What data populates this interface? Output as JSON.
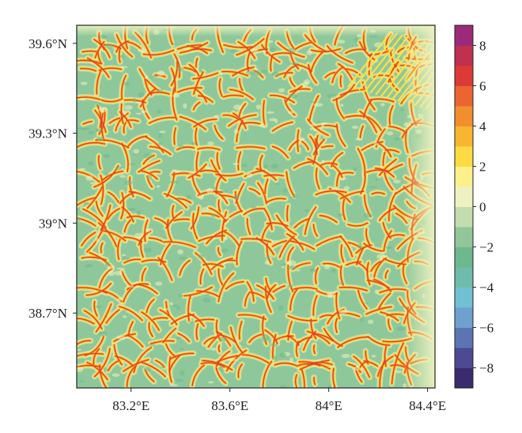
{
  "chart_data": {
    "type": "heatmap",
    "title": "",
    "xlabel": "",
    "ylabel": "",
    "x_ticks": [
      {
        "value": 83.2,
        "label": "83.2°E"
      },
      {
        "value": 83.6,
        "label": "83.6°E"
      },
      {
        "value": 84.0,
        "label": "84°E"
      },
      {
        "value": 84.4,
        "label": "84.4°E"
      }
    ],
    "y_ticks": [
      {
        "value": 39.6,
        "label": "39.6°N"
      },
      {
        "value": 39.3,
        "label": "39.3°N"
      },
      {
        "value": 39.0,
        "label": "39°N"
      },
      {
        "value": 38.7,
        "label": "38.7°N"
      }
    ],
    "xlim": [
      82.98,
      84.43
    ],
    "ylim": [
      38.45,
      39.66
    ],
    "colorbar": {
      "range": [
        -9,
        9
      ],
      "ticks": [
        {
          "value": 8,
          "label": "8"
        },
        {
          "value": 6,
          "label": "6"
        },
        {
          "value": 4,
          "label": "4"
        },
        {
          "value": 2,
          "label": "2"
        },
        {
          "value": 0,
          "label": "0"
        },
        {
          "value": -2,
          "label": "−2"
        },
        {
          "value": -4,
          "label": "−4"
        },
        {
          "value": -6,
          "label": "−6"
        },
        {
          "value": -8,
          "label": "−8"
        }
      ],
      "bins": [
        {
          "from": -9,
          "to": -8,
          "color": "#3b2a6e"
        },
        {
          "from": -8,
          "to": -7,
          "color": "#4d4a92"
        },
        {
          "from": -7,
          "to": -6,
          "color": "#5d74b2"
        },
        {
          "from": -6,
          "to": -5,
          "color": "#6ea0d0"
        },
        {
          "from": -5,
          "to": -4,
          "color": "#72c0d4"
        },
        {
          "from": -4,
          "to": -3,
          "color": "#6fbcab"
        },
        {
          "from": -3,
          "to": -2,
          "color": "#6db88d"
        },
        {
          "from": -2,
          "to": -1,
          "color": "#92c69a"
        },
        {
          "from": -1,
          "to": 0,
          "color": "#c4ddb0"
        },
        {
          "from": 0,
          "to": 1,
          "color": "#eef2c0"
        },
        {
          "from": 1,
          "to": 2,
          "color": "#fbf08a"
        },
        {
          "from": 2,
          "to": 3,
          "color": "#fcdb43"
        },
        {
          "from": 3,
          "to": 4,
          "color": "#f8b532"
        },
        {
          "from": 4,
          "to": 5,
          "color": "#f28e2e"
        },
        {
          "from": 5,
          "to": 6,
          "color": "#ea6532"
        },
        {
          "from": 6,
          "to": 7,
          "color": "#dc3a34"
        },
        {
          "from": 7,
          "to": 8,
          "color": "#c0304f"
        },
        {
          "from": 8,
          "to": 9,
          "color": "#9c2a7a"
        }
      ]
    },
    "field_description_colors": {
      "background": "#8ec79a",
      "ridge_outer": "#fce14a",
      "ridge_mid": "#f4962c",
      "ridge_core": "#d9372e",
      "light_edge": "#eef2c0"
    },
    "grid": false
  }
}
